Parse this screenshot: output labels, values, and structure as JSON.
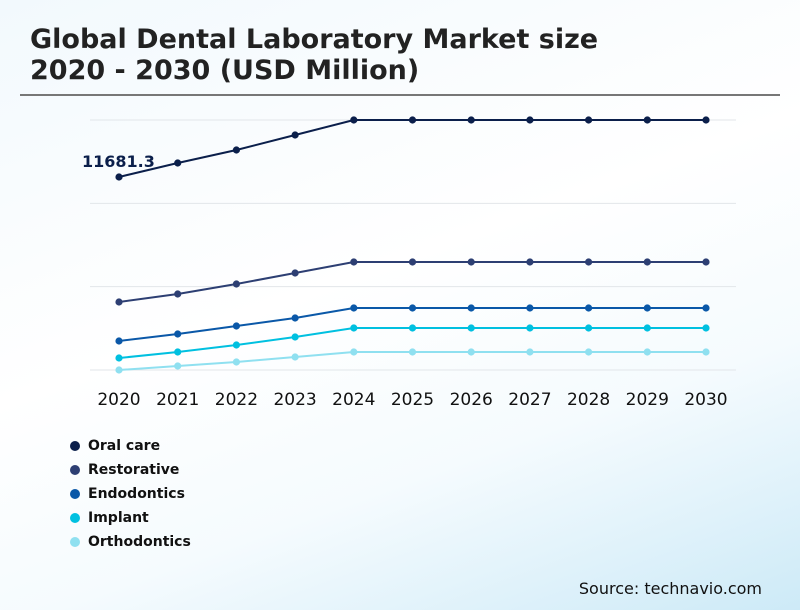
{
  "chart_data": {
    "type": "line",
    "title": "Global Dental Laboratory Market size 2020 - 2030 (USD Million)",
    "title_lines": [
      "Global Dental Laboratory Market size",
      "2020 - 2030 (USD Million)"
    ],
    "xlabel": "",
    "ylabel": "",
    "categories": [
      "2020",
      "2021",
      "2022",
      "2023",
      "2024",
      "2025",
      "2026",
      "2027",
      "2028",
      "2029",
      "2030"
    ],
    "ylim": [
      0,
      15130
    ],
    "y_gridlines": [
      0,
      5043,
      10087,
      15130
    ],
    "grid": true,
    "y_tick_labels_shown": false,
    "annotation": {
      "series": "Oral care",
      "category": "2020",
      "text": "11681.3"
    },
    "legend_position": "bottom-left",
    "series": [
      {
        "name": "Oral care",
        "color": "#0b1f4b",
        "values": [
          11681.3,
          12528,
          13314,
          14222,
          15130,
          15130,
          15130,
          15130,
          15130,
          15130,
          15130
        ]
      },
      {
        "name": "Restorative",
        "color": "#2d3f73",
        "values": [
          4115,
          4600,
          5205,
          5870,
          6536,
          6536,
          6536,
          6536,
          6536,
          6536,
          6536
        ]
      },
      {
        "name": "Endodontics",
        "color": "#0a58a8",
        "values": [
          1755,
          2179,
          2663,
          3147,
          3752,
          3752,
          3752,
          3752,
          3752,
          3752,
          3752
        ]
      },
      {
        "name": "Implant",
        "color": "#00c0e0",
        "values": [
          726,
          1089,
          1513,
          1997,
          2542,
          2542,
          2542,
          2542,
          2542,
          2542,
          2542
        ]
      },
      {
        "name": "Orthodontics",
        "color": "#8fe0f0",
        "values": [
          0,
          242,
          484,
          787,
          1089,
          1089,
          1089,
          1089,
          1089,
          1089,
          1089
        ]
      }
    ]
  },
  "source": "Source: technavio.com"
}
